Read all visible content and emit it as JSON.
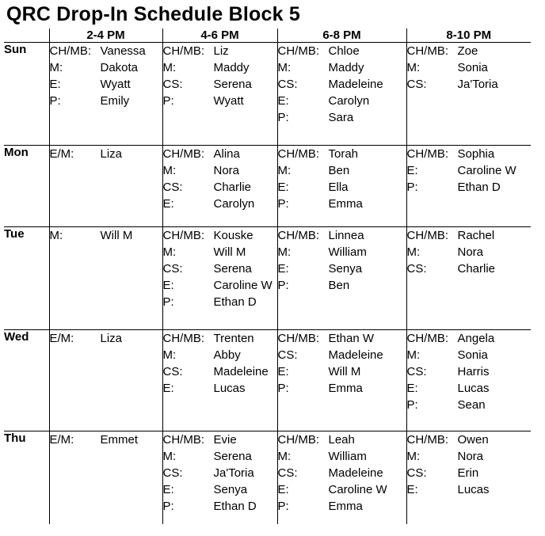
{
  "title": "QRC Drop-In Schedule Block 5",
  "schedule": {
    "day_column_header": "",
    "time_slots": [
      "2-4 PM",
      "4-6 PM",
      "6-8 PM",
      "8-10 PM"
    ],
    "rows": [
      {
        "day": "Sun",
        "cells": [
          {
            "entries": [
              {
                "role": "CH/MB:",
                "name": "Vanessa"
              },
              {
                "role": "M:",
                "name": "Dakota"
              },
              {
                "role": "E:",
                "name": "Wyatt"
              },
              {
                "role": "P:",
                "name": "Emily"
              }
            ]
          },
          {
            "entries": [
              {
                "role": "CH/MB:",
                "name": "Liz"
              },
              {
                "role": "M:",
                "name": "Maddy"
              },
              {
                "role": "CS:",
                "name": "Serena"
              },
              {
                "role": "P:",
                "name": "Wyatt"
              }
            ]
          },
          {
            "entries": [
              {
                "role": "CH/MB:",
                "name": "Chloe"
              },
              {
                "role": "M:",
                "name": "Maddy"
              },
              {
                "role": "CS:",
                "name": "Madeleine"
              },
              {
                "role": "E:",
                "name": "Carolyn"
              },
              {
                "role": "P:",
                "name": "Sara"
              }
            ]
          },
          {
            "entries": [
              {
                "role": "CH/MB:",
                "name": "Zoe"
              },
              {
                "role": "M:",
                "name": "Sonia"
              },
              {
                "role": "CS:",
                "name": "Ja'Toria"
              }
            ]
          }
        ]
      },
      {
        "day": "Mon",
        "cells": [
          {
            "entries": [
              {
                "role": "E/M:",
                "name": "Liza"
              }
            ]
          },
          {
            "entries": [
              {
                "role": "CH/MB:",
                "name": "Alina"
              },
              {
                "role": "M:",
                "name": "Nora"
              },
              {
                "role": "CS:",
                "name": "Charlie"
              },
              {
                "role": "E:",
                "name": "Carolyn"
              }
            ]
          },
          {
            "entries": [
              {
                "role": "CH/MB:",
                "name": "Torah"
              },
              {
                "role": "M:",
                "name": "Ben"
              },
              {
                "role": "E:",
                "name": "Ella"
              },
              {
                "role": "P:",
                "name": "Emma"
              }
            ]
          },
          {
            "entries": [
              {
                "role": "CH/MB:",
                "name": "Sophia"
              },
              {
                "role": "E:",
                "name": "Caroline W"
              },
              {
                "role": "P:",
                "name": "Ethan D"
              }
            ]
          }
        ]
      },
      {
        "day": "Tue",
        "cells": [
          {
            "entries": [
              {
                "role": "M:",
                "name": "Will M"
              }
            ]
          },
          {
            "entries": [
              {
                "role": "CH/MB:",
                "name": "Kouske"
              },
              {
                "role": "M:",
                "name": "Will M"
              },
              {
                "role": "CS:",
                "name": "Serena"
              },
              {
                "role": "E:",
                "name": "Caroline W"
              },
              {
                "role": "P:",
                "name": "Ethan D"
              }
            ]
          },
          {
            "entries": [
              {
                "role": "CH/MB:",
                "name": "Linnea"
              },
              {
                "role": "M:",
                "name": "William"
              },
              {
                "role": "E:",
                "name": "Senya"
              },
              {
                "role": "P:",
                "name": "Ben"
              }
            ]
          },
          {
            "entries": [
              {
                "role": "CH/MB:",
                "name": "Rachel"
              },
              {
                "role": "M:",
                "name": "Nora"
              },
              {
                "role": "CS:",
                "name": "Charlie"
              }
            ]
          }
        ]
      },
      {
        "day": "Wed",
        "cells": [
          {
            "entries": [
              {
                "role": "E/M:",
                "name": "Liza"
              }
            ]
          },
          {
            "entries": [
              {
                "role": "CH/MB:",
                "name": "Trenten"
              },
              {
                "role": "M:",
                "name": "Abby"
              },
              {
                "role": "CS:",
                "name": "Madeleine"
              },
              {
                "role": "E:",
                "name": "Lucas"
              }
            ]
          },
          {
            "entries": [
              {
                "role": "CH/MB:",
                "name": "Ethan W"
              },
              {
                "role": "CS:",
                "name": "Madeleine"
              },
              {
                "role": "E:",
                "name": "Will M"
              },
              {
                "role": "P:",
                "name": "Emma"
              }
            ]
          },
          {
            "entries": [
              {
                "role": "CH/MB:",
                "name": "Angela"
              },
              {
                "role": "M:",
                "name": "Sonia"
              },
              {
                "role": "CS:",
                "name": "Harris"
              },
              {
                "role": "E:",
                "name": "Lucas"
              },
              {
                "role": "P:",
                "name": "Sean"
              }
            ]
          }
        ]
      },
      {
        "day": "Thu",
        "cells": [
          {
            "entries": [
              {
                "role": "E/M:",
                "name": "Emmet"
              }
            ]
          },
          {
            "entries": [
              {
                "role": "CH/MB:",
                "name": "Evie"
              },
              {
                "role": "M:",
                "name": "Serena"
              },
              {
                "role": "CS:",
                "name": "Ja'Toria"
              },
              {
                "role": "E:",
                "name": "Senya"
              },
              {
                "role": "P:",
                "name": "Ethan D"
              }
            ]
          },
          {
            "entries": [
              {
                "role": "CH/MB:",
                "name": "Leah"
              },
              {
                "role": "M:",
                "name": "William"
              },
              {
                "role": "CS:",
                "name": "Madeleine"
              },
              {
                "role": "E:",
                "name": "Caroline W"
              },
              {
                "role": "P:",
                "name": "Emma"
              }
            ]
          },
          {
            "entries": [
              {
                "role": "CH/MB:",
                "name": "Owen"
              },
              {
                "role": "M:",
                "name": "Nora"
              },
              {
                "role": "CS:",
                "name": "Erin"
              },
              {
                "role": "E:",
                "name": "Lucas"
              }
            ]
          }
        ]
      }
    ]
  }
}
